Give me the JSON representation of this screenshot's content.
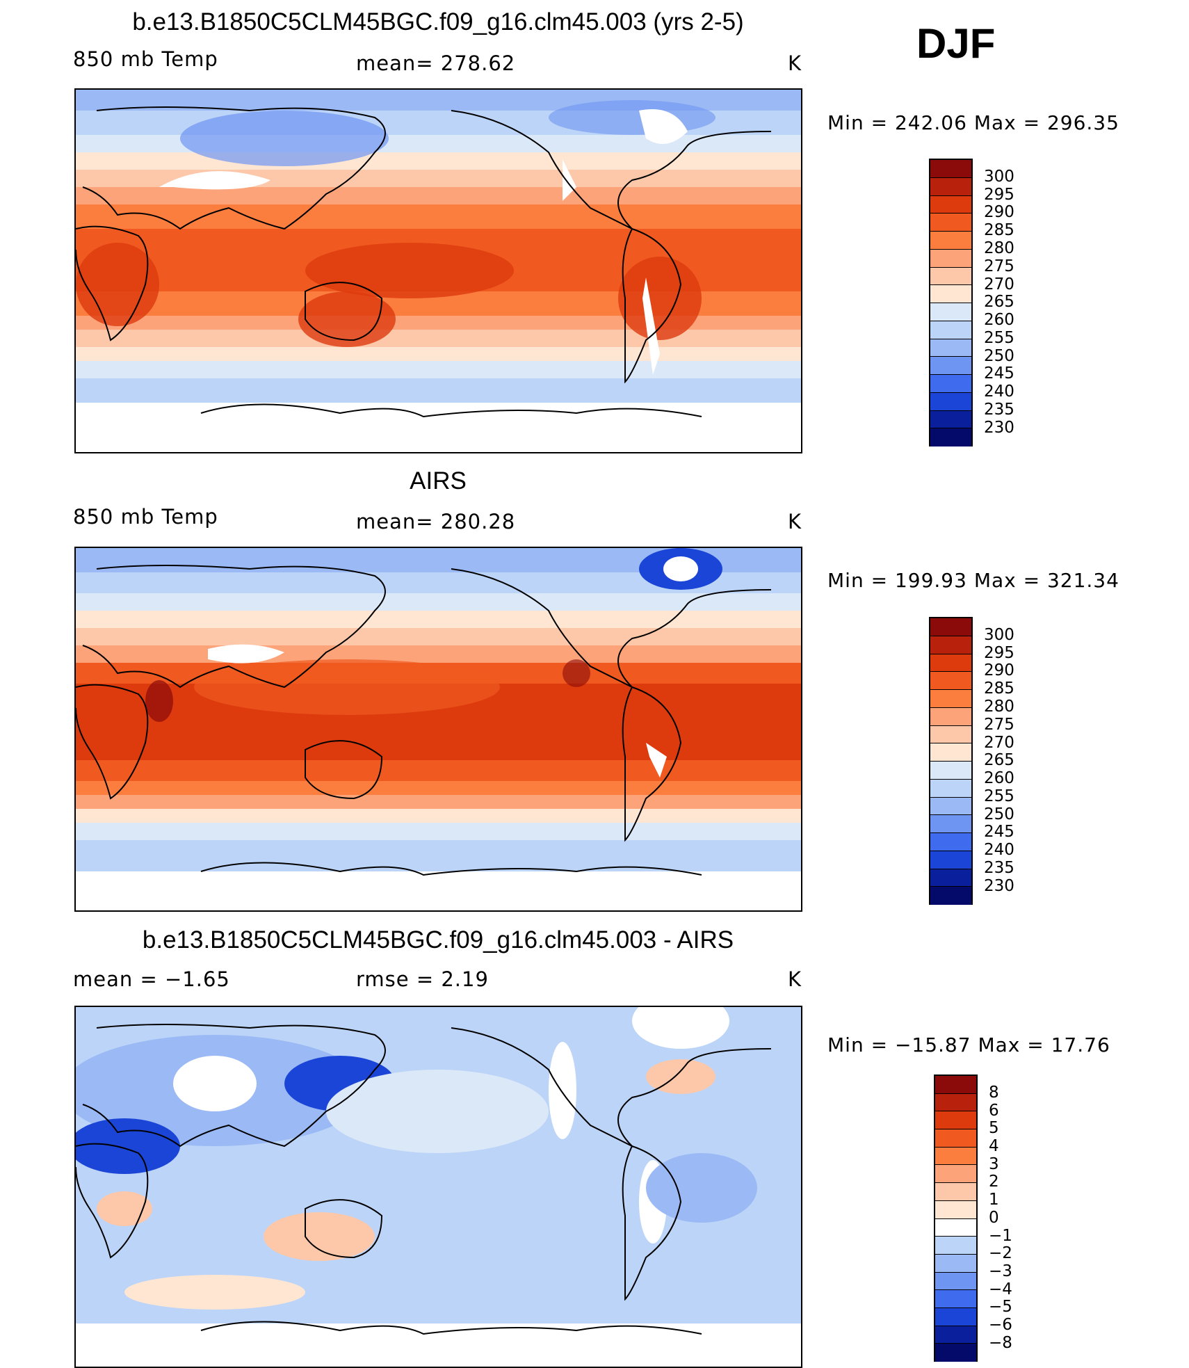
{
  "season": "DJF",
  "panels": [
    {
      "title": "b.e13.B1850C5CLM45BGC.f09_g16.clm45.003 (yrs 2-5)",
      "left_label": "850 mb Temp",
      "center_label": "mean= 278.62",
      "unit": "K",
      "minmax": "Min = 242.06 Max = 296.35",
      "colorbar_labels": [
        "300",
        "295",
        "290",
        "285",
        "280",
        "275",
        "270",
        "265",
        "260",
        "255",
        "250",
        "245",
        "240",
        "235",
        "230"
      ],
      "colorbar_colors": [
        "#8b0a0a",
        "#b8220c",
        "#dd3a0e",
        "#f05a20",
        "#fb7e3f",
        "#fca37a",
        "#fdc8a9",
        "#fee6d3",
        "#dbe8f8",
        "#bcd4f7",
        "#9ab9f5",
        "#6f95f2",
        "#3f6cee",
        "#1b45d7",
        "#0a1f9c",
        "#040a6a"
      ]
    },
    {
      "title": "AIRS",
      "left_label": "850 mb Temp",
      "center_label": "mean= 280.28",
      "unit": "K",
      "minmax": "Min = 199.93 Max = 321.34",
      "colorbar_labels": [
        "300",
        "295",
        "290",
        "285",
        "280",
        "275",
        "270",
        "265",
        "260",
        "255",
        "250",
        "245",
        "240",
        "235",
        "230"
      ],
      "colorbar_colors": [
        "#8b0a0a",
        "#b8220c",
        "#dd3a0e",
        "#f05a20",
        "#fb7e3f",
        "#fca37a",
        "#fdc8a9",
        "#fee6d3",
        "#dbe8f8",
        "#bcd4f7",
        "#9ab9f5",
        "#6f95f2",
        "#3f6cee",
        "#1b45d7",
        "#0a1f9c",
        "#040a6a"
      ]
    },
    {
      "title": "b.e13.B1850C5CLM45BGC.f09_g16.clm45.003 - AIRS",
      "left_label": "mean = −1.65",
      "center_label": "rmse = 2.19",
      "unit": "K",
      "minmax": "Min = −15.87 Max = 17.76",
      "colorbar_labels": [
        "8",
        "6",
        "5",
        "4",
        "3",
        "2",
        "1",
        "0",
        "−1",
        "−2",
        "−3",
        "−4",
        "−5",
        "−6",
        "−8"
      ],
      "colorbar_colors": [
        "#8b0a0a",
        "#b8220c",
        "#dd3a0e",
        "#f05a20",
        "#fb7e3f",
        "#fca37a",
        "#fdc8a9",
        "#fee6d3",
        "#ffffff",
        "#bcd4f7",
        "#9ab9f5",
        "#6f95f2",
        "#3f6cee",
        "#1b45d7",
        "#0a1f9c",
        "#040a6a"
      ]
    }
  ]
}
